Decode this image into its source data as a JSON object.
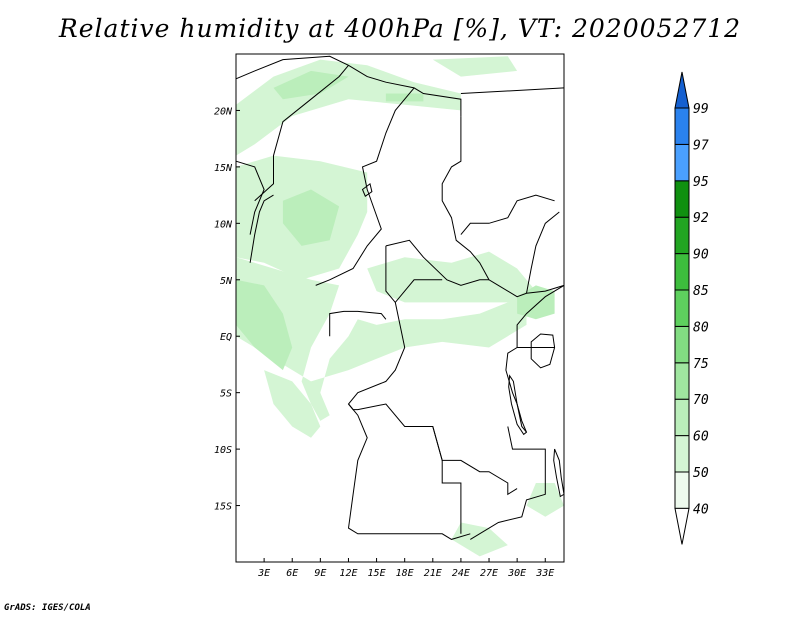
{
  "title": "Relative humidity at 400hPa [%], VT: 2020052712",
  "credit": "GrADS: IGES/COLA",
  "map": {
    "lon_min": 0,
    "lon_max": 35,
    "lat_min": -20,
    "lat_max": 25,
    "lon_ticks": [
      {
        "value": 3,
        "label": "3E"
      },
      {
        "value": 6,
        "label": "6E"
      },
      {
        "value": 9,
        "label": "9E"
      },
      {
        "value": 12,
        "label": "12E"
      },
      {
        "value": 15,
        "label": "15E"
      },
      {
        "value": 18,
        "label": "18E"
      },
      {
        "value": 21,
        "label": "21E"
      },
      {
        "value": 24,
        "label": "24E"
      },
      {
        "value": 27,
        "label": "27E"
      },
      {
        "value": 30,
        "label": "30E"
      },
      {
        "value": 33,
        "label": "33E"
      }
    ],
    "lat_ticks": [
      {
        "value": 20,
        "label": "20N"
      },
      {
        "value": 15,
        "label": "15N"
      },
      {
        "value": 10,
        "label": "10N"
      },
      {
        "value": 5,
        "label": "5N"
      },
      {
        "value": 0,
        "label": "EQ"
      },
      {
        "value": -5,
        "label": "5S"
      },
      {
        "value": -10,
        "label": "10S"
      },
      {
        "value": -15,
        "label": "15S"
      }
    ],
    "humid_regions": [
      {
        "name": "sahel-north-band",
        "level": 50,
        "pts": [
          [
            0,
            20.5
          ],
          [
            4,
            23
          ],
          [
            9,
            24.5
          ],
          [
            14,
            24
          ],
          [
            19,
            22.5
          ],
          [
            24,
            21.5
          ],
          [
            24,
            20
          ],
          [
            18,
            20.5
          ],
          [
            12,
            21
          ],
          [
            6,
            19.5
          ],
          [
            2,
            17
          ],
          [
            0,
            16
          ]
        ]
      },
      {
        "name": "sahel-north-core",
        "level": 60,
        "pts": [
          [
            4,
            22
          ],
          [
            8,
            23.5
          ],
          [
            12,
            23
          ],
          [
            9,
            21.5
          ],
          [
            5,
            21
          ]
        ]
      },
      {
        "name": "sahel-north-core-2",
        "level": 60,
        "pts": [
          [
            16,
            21.5
          ],
          [
            20,
            21.5
          ],
          [
            20,
            20.8
          ],
          [
            16,
            20.8
          ]
        ]
      },
      {
        "name": "west-africa-band",
        "level": 50,
        "pts": [
          [
            0,
            15
          ],
          [
            4,
            16
          ],
          [
            9,
            15.5
          ],
          [
            14,
            14.5
          ],
          [
            14,
            11
          ],
          [
            13,
            9
          ],
          [
            11,
            6
          ],
          [
            7,
            5
          ],
          [
            3,
            6.5
          ],
          [
            0,
            7
          ]
        ]
      },
      {
        "name": "nigeria-core",
        "level": 60,
        "pts": [
          [
            5,
            12
          ],
          [
            8,
            13
          ],
          [
            11,
            11.5
          ],
          [
            10,
            8.5
          ],
          [
            7,
            8
          ],
          [
            5,
            10
          ]
        ]
      },
      {
        "name": "gulf-guinea-plume",
        "level": 50,
        "pts": [
          [
            0,
            7
          ],
          [
            4,
            6
          ],
          [
            8,
            5
          ],
          [
            11,
            4.5
          ],
          [
            10,
            2
          ],
          [
            8,
            -1
          ],
          [
            7,
            -4
          ],
          [
            8,
            -6
          ],
          [
            9,
            -7.5
          ],
          [
            10,
            -7
          ],
          [
            9,
            -5
          ],
          [
            10,
            -2
          ],
          [
            12,
            0
          ],
          [
            13,
            1.5
          ],
          [
            15,
            1
          ],
          [
            18,
            1.5
          ],
          [
            22,
            1.5
          ],
          [
            26,
            2
          ],
          [
            29,
            3
          ],
          [
            31,
            3.5
          ],
          [
            31,
            1
          ],
          [
            27,
            -1
          ],
          [
            22,
            -0.5
          ],
          [
            18,
            -1
          ],
          [
            15,
            -2
          ],
          [
            12,
            -3
          ],
          [
            8,
            -4
          ],
          [
            4,
            -2
          ],
          [
            0,
            0
          ]
        ]
      },
      {
        "name": "plume-core",
        "level": 60,
        "pts": [
          [
            0,
            5
          ],
          [
            3,
            4.5
          ],
          [
            5,
            2
          ],
          [
            6,
            -1
          ],
          [
            5,
            -3
          ],
          [
            2,
            -1
          ],
          [
            0,
            1
          ]
        ]
      },
      {
        "name": "central-africa-band",
        "level": 50,
        "pts": [
          [
            14,
            6
          ],
          [
            18,
            7
          ],
          [
            23,
            6.5
          ],
          [
            27,
            7.5
          ],
          [
            30,
            6
          ],
          [
            32,
            4
          ],
          [
            30,
            3
          ],
          [
            26,
            3
          ],
          [
            22,
            3
          ],
          [
            18,
            3
          ],
          [
            15,
            4
          ]
        ]
      },
      {
        "name": "east-africa-patch",
        "level": 60,
        "pts": [
          [
            30,
            3.5
          ],
          [
            32,
            4.5
          ],
          [
            34,
            4
          ],
          [
            34,
            2
          ],
          [
            32,
            1.5
          ],
          [
            30,
            2
          ]
        ]
      },
      {
        "name": "southwest-atlantic",
        "level": 50,
        "pts": [
          [
            3,
            -3
          ],
          [
            6,
            -4
          ],
          [
            8,
            -6
          ],
          [
            9,
            -8
          ],
          [
            8,
            -9
          ],
          [
            6,
            -8
          ],
          [
            4,
            -6
          ]
        ]
      },
      {
        "name": "mozambique-strip",
        "level": 50,
        "pts": [
          [
            32,
            -13
          ],
          [
            34,
            -13
          ],
          [
            35,
            -15
          ],
          [
            33,
            -16
          ],
          [
            31,
            -15
          ]
        ]
      },
      {
        "name": "south-patch",
        "level": 50,
        "pts": [
          [
            24,
            -16.5
          ],
          [
            27,
            -17
          ],
          [
            29,
            -18.5
          ],
          [
            26,
            -19.5
          ],
          [
            23,
            -18
          ]
        ]
      },
      {
        "name": "northeast-patch",
        "level": 50,
        "pts": [
          [
            21,
            24.5
          ],
          [
            29,
            24.8
          ],
          [
            30,
            23.5
          ],
          [
            24,
            23
          ]
        ]
      }
    ],
    "boundaries": [
      [
        [
          0,
          22.8
        ],
        [
          2,
          23.5
        ],
        [
          5,
          24.5
        ],
        [
          10,
          24.8
        ],
        [
          12,
          24
        ],
        [
          14,
          23
        ],
        [
          16,
          22.5
        ],
        [
          19,
          22
        ],
        [
          20,
          21.5
        ],
        [
          24,
          21
        ],
        [
          24,
          19.5
        ]
      ],
      [
        [
          24,
          19.5
        ],
        [
          24,
          15.5
        ],
        [
          23,
          15
        ],
        [
          22,
          13.5
        ],
        [
          22,
          12
        ],
        [
          23,
          10.5
        ],
        [
          23.5,
          8.5
        ],
        [
          25,
          7.5
        ],
        [
          26,
          6.5
        ],
        [
          27,
          5
        ],
        [
          28,
          4.5
        ],
        [
          30,
          3.5
        ],
        [
          31,
          3.8
        ],
        [
          33,
          4
        ],
        [
          35,
          4.5
        ]
      ],
      [
        [
          24,
          21.5
        ],
        [
          35,
          22
        ]
      ],
      [
        [
          10,
          0
        ],
        [
          10,
          2
        ],
        [
          11.5,
          2.2
        ],
        [
          13,
          2.2
        ],
        [
          15.5,
          2
        ],
        [
          16,
          1.5
        ]
      ],
      [
        [
          14,
          13
        ],
        [
          15.5,
          9.5
        ],
        [
          14,
          8
        ],
        [
          12.5,
          6
        ],
        [
          10,
          5
        ],
        [
          8.5,
          4.5
        ]
      ],
      [
        [
          16,
          8
        ],
        [
          18.5,
          8.5
        ],
        [
          20,
          7
        ],
        [
          22.5,
          5
        ],
        [
          24,
          4.5
        ],
        [
          26,
          5
        ],
        [
          27,
          5
        ]
      ],
      [
        [
          16,
          8
        ],
        [
          16,
          4
        ],
        [
          17,
          3
        ],
        [
          18,
          4
        ],
        [
          19,
          5
        ],
        [
          22,
          5
        ]
      ],
      [
        [
          17,
          3
        ],
        [
          17.5,
          1
        ],
        [
          18,
          -1
        ],
        [
          17,
          -3
        ],
        [
          16,
          -4
        ],
        [
          13,
          -5
        ],
        [
          12,
          -6
        ],
        [
          12.5,
          -6.5
        ],
        [
          13,
          -6.5
        ],
        [
          16,
          -6
        ],
        [
          18,
          -8
        ],
        [
          21,
          -8
        ],
        [
          22,
          -11
        ],
        [
          24,
          -11
        ],
        [
          26,
          -12
        ],
        [
          27,
          -12
        ],
        [
          29,
          -13
        ],
        [
          29,
          -14
        ],
        [
          30,
          -13.5
        ]
      ],
      [
        [
          12,
          -6
        ],
        [
          13,
          -7
        ],
        [
          14,
          -9
        ],
        [
          13,
          -11
        ],
        [
          12.5,
          -14
        ],
        [
          12,
          -17
        ],
        [
          13,
          -17.5
        ],
        [
          20,
          -17.5
        ],
        [
          22,
          -17.5
        ],
        [
          23,
          -18
        ],
        [
          25,
          -17.5
        ]
      ],
      [
        [
          21,
          -8
        ],
        [
          22,
          -11
        ],
        [
          22,
          -13
        ],
        [
          24,
          -13
        ],
        [
          24,
          -17.5
        ]
      ],
      [
        [
          29,
          -8
        ],
        [
          29.5,
          -10
        ],
        [
          30.5,
          -10
        ],
        [
          33,
          -10
        ],
        [
          33,
          -12
        ],
        [
          33,
          -14
        ],
        [
          31,
          -14.5
        ],
        [
          30.5,
          -16
        ],
        [
          28,
          -16.5
        ],
        [
          25,
          -18
        ]
      ],
      [
        [
          30,
          -1
        ],
        [
          29,
          -1.5
        ],
        [
          28.8,
          -3
        ],
        [
          29.5,
          -5
        ],
        [
          30,
          -6
        ],
        [
          30.5,
          -8
        ],
        [
          31,
          -8.5
        ]
      ],
      [
        [
          30,
          -1
        ],
        [
          33,
          -1
        ],
        [
          34,
          -1
        ]
      ],
      [
        [
          30,
          -1
        ],
        [
          30,
          1
        ],
        [
          31,
          2
        ],
        [
          33,
          3.5
        ],
        [
          35,
          4.5
        ]
      ],
      [
        [
          31,
          3.8
        ],
        [
          31.5,
          6
        ],
        [
          32,
          8
        ],
        [
          33,
          10
        ],
        [
          34.5,
          11
        ]
      ],
      [
        [
          24,
          9
        ],
        [
          25,
          10
        ],
        [
          27,
          10
        ],
        [
          29,
          10.5
        ],
        [
          30,
          12
        ],
        [
          32,
          12.5
        ],
        [
          34,
          12
        ]
      ],
      [
        [
          14,
          13
        ],
        [
          13.5,
          15
        ],
        [
          15,
          15.5
        ],
        [
          16,
          18
        ],
        [
          17,
          20
        ],
        [
          19,
          22
        ]
      ],
      [
        [
          2,
          12
        ],
        [
          4,
          13.5
        ],
        [
          4,
          16
        ],
        [
          5,
          19
        ],
        [
          8,
          21
        ],
        [
          11,
          23
        ],
        [
          12,
          24
        ]
      ],
      [
        [
          0,
          15.5
        ],
        [
          2,
          15
        ],
        [
          3,
          13
        ],
        [
          2,
          11
        ],
        [
          1.5,
          9
        ]
      ],
      [
        [
          1.5,
          6.5
        ],
        [
          2,
          9
        ],
        [
          2.5,
          11
        ],
        [
          3,
          12
        ],
        [
          4,
          12.5
        ]
      ]
    ],
    "lakes": [
      {
        "name": "lake-victoria",
        "pts": [
          [
            31.5,
            -0.5
          ],
          [
            32.5,
            0.2
          ],
          [
            33.8,
            0.1
          ],
          [
            34,
            -1
          ],
          [
            33.5,
            -2.5
          ],
          [
            32.5,
            -2.8
          ],
          [
            31.5,
            -2
          ]
        ]
      },
      {
        "name": "lake-tanganyika",
        "pts": [
          [
            29.2,
            -3.5
          ],
          [
            29.6,
            -4
          ],
          [
            30,
            -6
          ],
          [
            30.5,
            -7.5
          ],
          [
            31,
            -8.5
          ],
          [
            30.7,
            -8.7
          ],
          [
            30,
            -7.8
          ],
          [
            29.4,
            -6
          ],
          [
            29.1,
            -4.5
          ]
        ]
      },
      {
        "name": "lake-malawi",
        "pts": [
          [
            34,
            -10
          ],
          [
            34.5,
            -11
          ],
          [
            34.7,
            -12.5
          ],
          [
            35,
            -14
          ],
          [
            34.6,
            -14.2
          ],
          [
            34.2,
            -12.5
          ],
          [
            33.9,
            -11
          ]
        ]
      },
      {
        "name": "lake-chad",
        "pts": [
          [
            13.5,
            13
          ],
          [
            14.3,
            13.5
          ],
          [
            14.5,
            12.8
          ],
          [
            13.8,
            12.4
          ]
        ]
      }
    ]
  },
  "colorbar": {
    "labels": [
      "40",
      "50",
      "60",
      "70",
      "75",
      "80",
      "85",
      "90",
      "92",
      "95",
      "97",
      "99"
    ],
    "colors": [
      "#eefaee",
      "#d4f5d4",
      "#bbeebb",
      "#a0e6a0",
      "#82dc82",
      "#5ed05e",
      "#3dbd3d",
      "#22a522",
      "#109010",
      "#4aa0ff",
      "#2a82ee",
      "#1560d0"
    ]
  }
}
